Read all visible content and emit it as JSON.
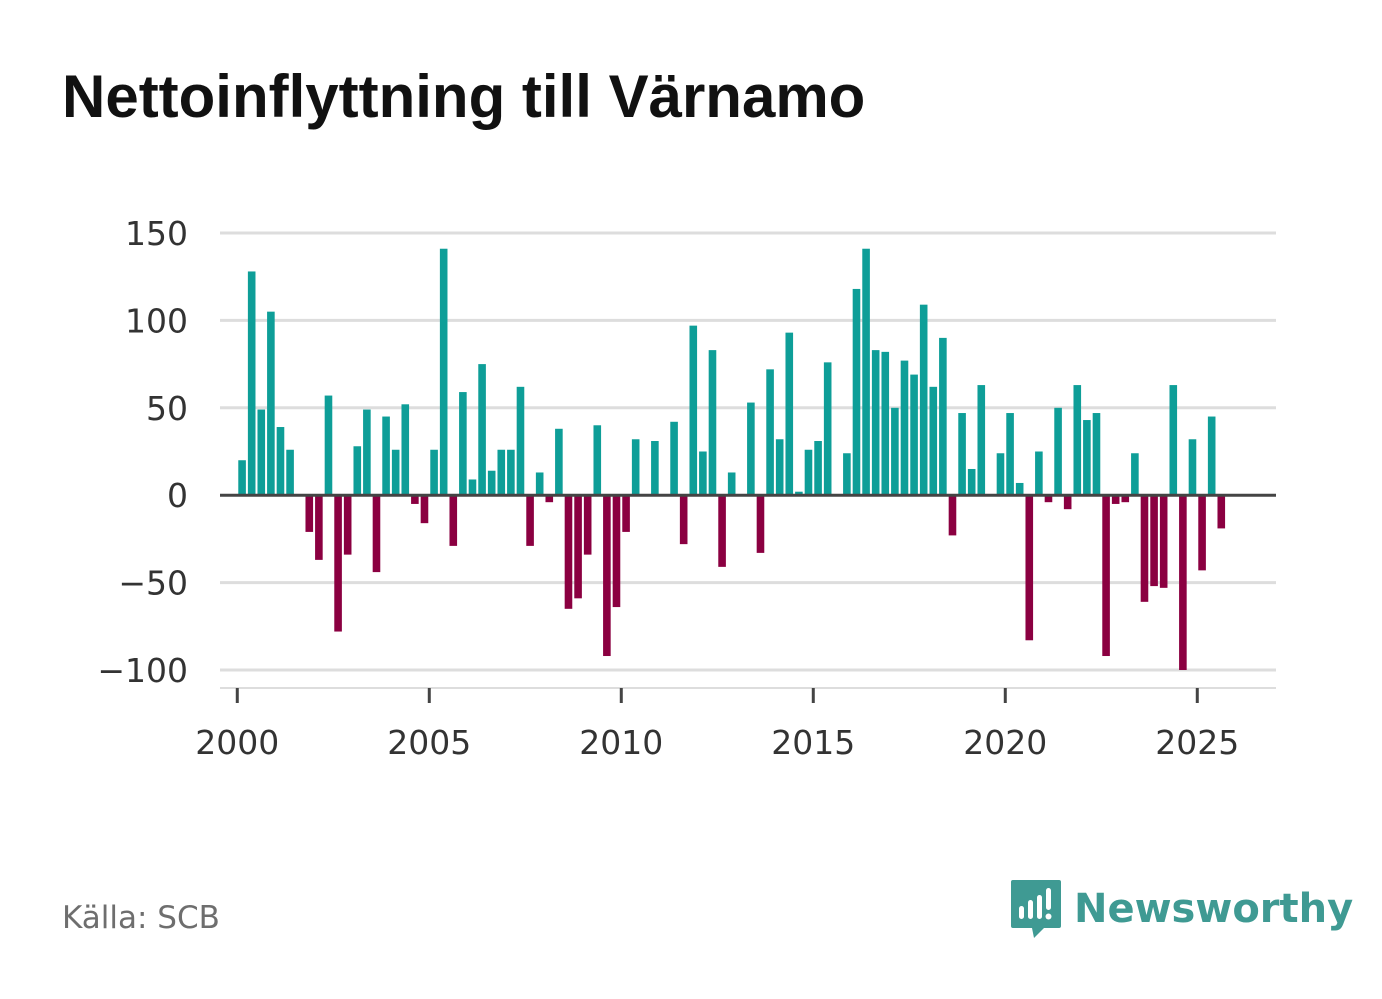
{
  "title": "Nettoinflyttning till Värnamo",
  "source": "Källa: SCB",
  "brand": {
    "name": "Newsworthy",
    "icon": "newsworthy-logo-icon"
  },
  "colors": {
    "positive": "#0e9e98",
    "negative": "#8b0041",
    "grid": "#dddddd",
    "axis": "#444444",
    "brand": "#3f9a93"
  },
  "chart_data": {
    "type": "bar",
    "title": "Nettoinflyttning till Värnamo",
    "xlabel": "",
    "ylabel": "",
    "ylim": [
      -100,
      150
    ],
    "yticks": [
      150,
      100,
      50,
      0,
      -50,
      -100
    ],
    "ytick_labels": [
      "150",
      "100",
      "50",
      "0",
      "−50",
      "−100"
    ],
    "xlim": [
      1999.55,
      2027.05
    ],
    "xticks": [
      2000,
      2005,
      2010,
      2015,
      2020,
      2025
    ],
    "xtick_labels": [
      "2000",
      "2005",
      "2010",
      "2015",
      "2020",
      "2025"
    ],
    "grid": true,
    "interval": "quarterly",
    "start": 2000.125,
    "step": 0.25,
    "values": [
      20,
      128,
      49,
      105,
      39,
      26,
      0,
      -21,
      -37,
      57,
      -78,
      -34,
      28,
      49,
      -44,
      45,
      26,
      52,
      -5,
      -16,
      26,
      141,
      -29,
      59,
      9,
      75,
      14,
      26,
      26,
      62,
      -29,
      13,
      -4,
      38,
      -65,
      -59,
      -34,
      40,
      -92,
      -64,
      -21,
      32,
      0,
      31,
      0,
      42,
      -28,
      97,
      25,
      83,
      -41,
      13,
      0,
      53,
      -33,
      72,
      32,
      93,
      2,
      26,
      31,
      76,
      0,
      24,
      118,
      141,
      83,
      82,
      50,
      77,
      69,
      109,
      62,
      90,
      -23,
      47,
      15,
      63,
      0,
      24,
      47,
      7,
      -83,
      25,
      -4,
      50,
      -8,
      63,
      43,
      47,
      -92,
      -5,
      -4,
      24,
      -61,
      -52,
      -53,
      63,
      -100,
      32,
      -43,
      45,
      -19
    ]
  }
}
